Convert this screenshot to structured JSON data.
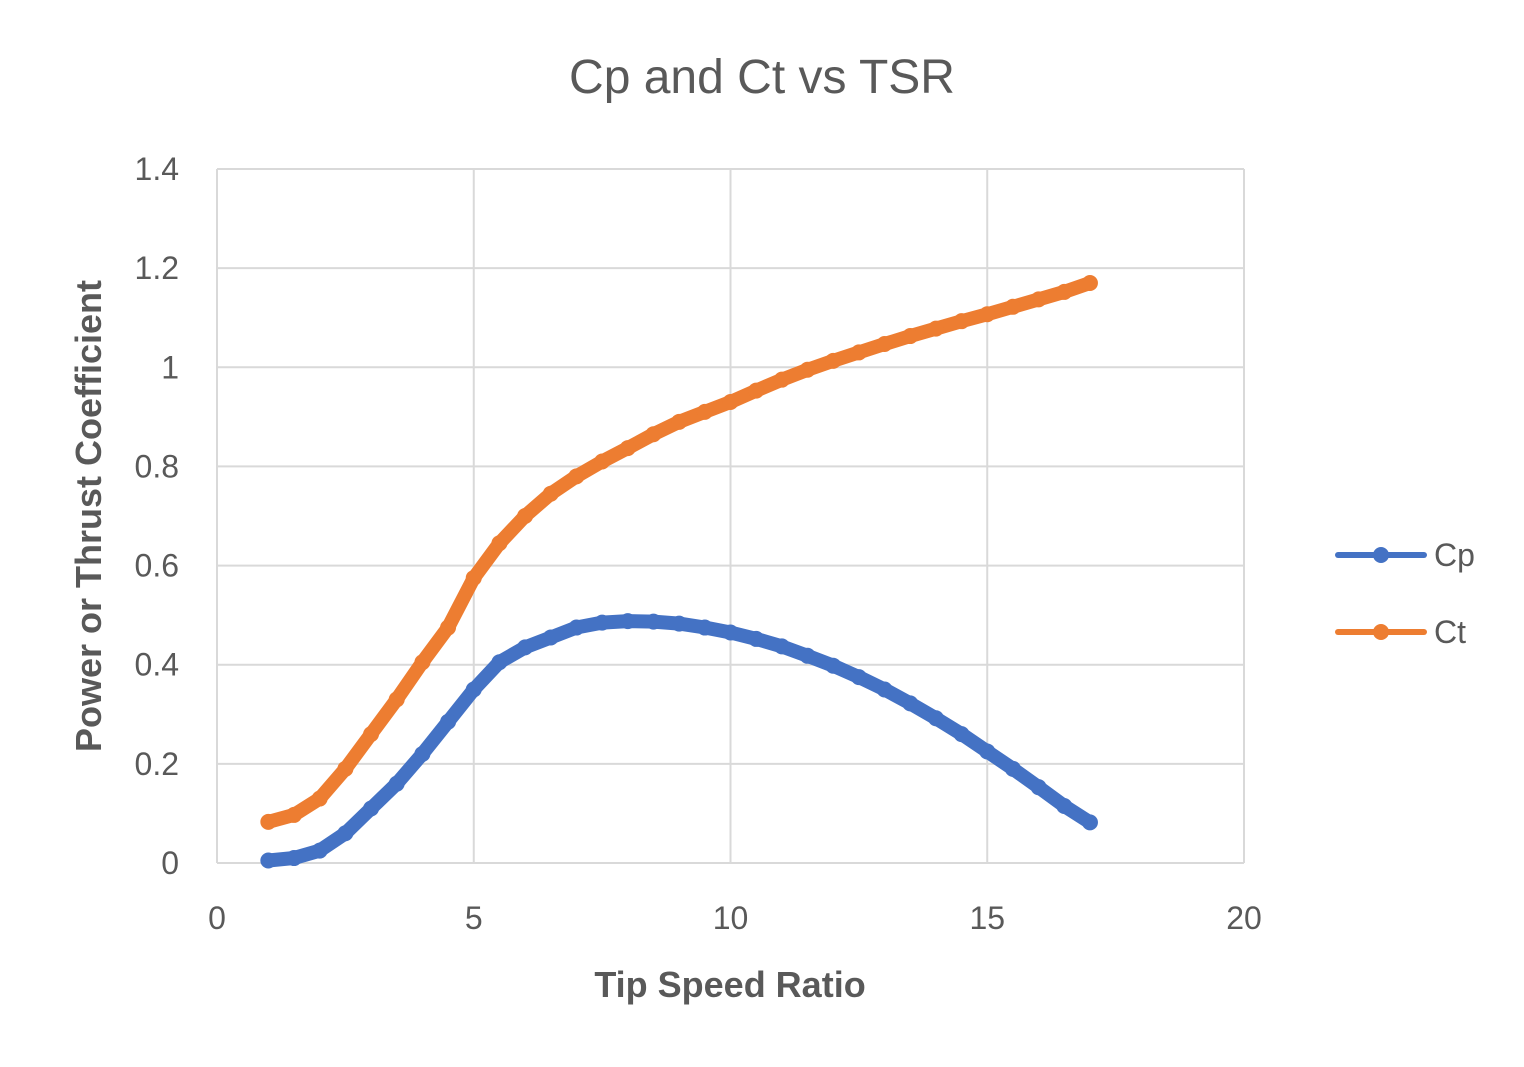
{
  "chart_data": {
    "type": "line",
    "title": "Cp and Ct vs TSR",
    "xlabel": "Tip Speed Ratio",
    "ylabel": "Power or Thrust Coefficient",
    "xlim": [
      0,
      20
    ],
    "ylim": [
      0,
      1.4
    ],
    "xticks": [
      "0",
      "5",
      "10",
      "15",
      "20"
    ],
    "yticks": [
      "0",
      "0.2",
      "0.4",
      "0.6",
      "0.8",
      "1",
      "1.2",
      "1.4"
    ],
    "grid": true,
    "legend_position": "right",
    "series": [
      {
        "name": "Cp",
        "color": "#4472c4",
        "x": [
          1,
          1.5,
          2,
          2.5,
          3,
          3.5,
          4,
          4.5,
          5,
          5.5,
          6,
          6.5,
          7,
          7.5,
          8,
          8.5,
          9,
          9.5,
          10,
          10.5,
          11,
          11.5,
          12,
          12.5,
          13,
          13.5,
          14,
          14.5,
          15,
          15.5,
          16,
          16.5,
          17
        ],
        "y": [
          0.005,
          0.01,
          0.025,
          0.06,
          0.11,
          0.16,
          0.22,
          0.285,
          0.35,
          0.405,
          0.435,
          0.455,
          0.475,
          0.485,
          0.488,
          0.487,
          0.483,
          0.475,
          0.465,
          0.452,
          0.437,
          0.418,
          0.398,
          0.375,
          0.35,
          0.322,
          0.292,
          0.26,
          0.225,
          0.19,
          0.153,
          0.115,
          0.082
        ]
      },
      {
        "name": "Ct",
        "color": "#ed7d31",
        "x": [
          1,
          1.5,
          2,
          2.5,
          3,
          3.5,
          4,
          4.5,
          5,
          5.5,
          6,
          6.5,
          7,
          7.5,
          8,
          8.5,
          9,
          9.5,
          10,
          10.5,
          11,
          11.5,
          12,
          12.5,
          13,
          13.5,
          14,
          14.5,
          15,
          15.5,
          16,
          16.5,
          17
        ],
        "y": [
          0.083,
          0.097,
          0.13,
          0.19,
          0.26,
          0.33,
          0.405,
          0.475,
          0.575,
          0.645,
          0.7,
          0.745,
          0.78,
          0.81,
          0.837,
          0.865,
          0.89,
          0.91,
          0.93,
          0.953,
          0.975,
          0.995,
          1.013,
          1.03,
          1.047,
          1.063,
          1.078,
          1.093,
          1.107,
          1.122,
          1.137,
          1.152,
          1.17
        ]
      }
    ]
  }
}
